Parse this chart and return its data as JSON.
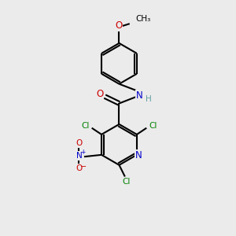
{
  "bg_color": "#ebebeb",
  "bond_color": "#000000",
  "atom_colors": {
    "C": "#000000",
    "N": "#0000cc",
    "O": "#cc0000",
    "Cl": "#008000",
    "H": "#5f9ea0"
  },
  "bond_lw": 1.5,
  "font_size_atom": 8.5,
  "font_size_small": 7.5
}
